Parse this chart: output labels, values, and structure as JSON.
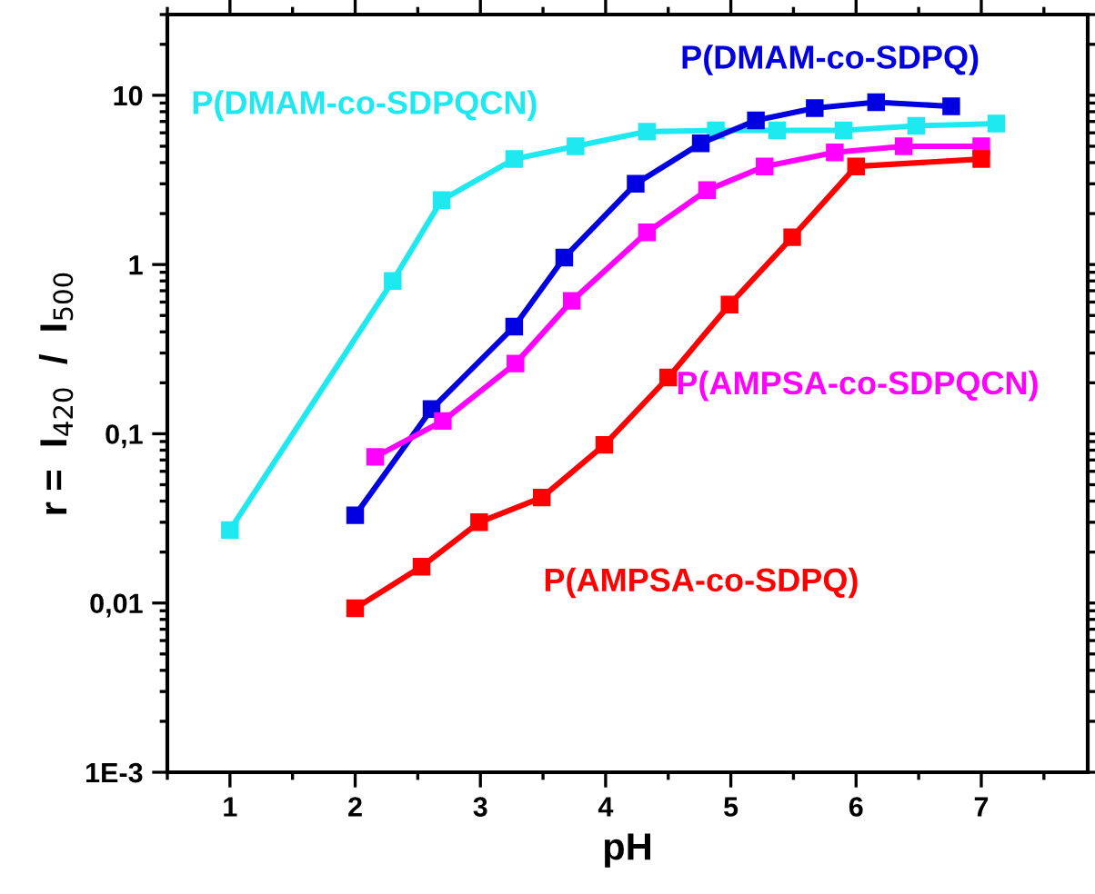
{
  "chart_data": {
    "type": "line",
    "xlabel": "pH",
    "ylabel": "r =  I$_{420}$  /  I$_{500}$",
    "log": "y",
    "xlim": [
      0.5,
      7.85
    ],
    "xticks": [
      1,
      2,
      3,
      4,
      5,
      6,
      7
    ],
    "ylim": [
      0.001,
      30
    ],
    "yticks": [
      {
        "value": 0.001,
        "label": "1E-3"
      },
      {
        "value": 0.01,
        "label": "0,01"
      },
      {
        "value": 0.1,
        "label": "0,1"
      },
      1,
      10
    ],
    "marker": "square",
    "grid": false,
    "legend": false,
    "series": [
      {
        "name": "P(DMAM-co-SDPQCN)",
        "color": "#1ee8f0",
        "x": [
          1,
          2.3,
          2.69,
          3.27,
          3.76,
          4.33,
          4.88,
          5.37,
          5.9,
          6.48,
          7.12
        ],
        "values": [
          0.027,
          0.8,
          2.4,
          4.2,
          5.0,
          6.1,
          6.2,
          6.2,
          6.2,
          6.6,
          6.8
        ]
      },
      {
        "name": "P(DMAM-co-SDPQ)",
        "color": "#0000e0",
        "x": [
          2,
          2.61,
          3.27,
          3.67,
          4.24,
          4.76,
          5.2,
          5.67,
          6.16,
          6.76
        ],
        "values": [
          0.033,
          0.14,
          0.43,
          1.1,
          3.0,
          5.2,
          7.1,
          8.4,
          9.1,
          8.6
        ]
      },
      {
        "name": "P(AMPSA-co-SDPQCN)",
        "color": "#ff00ff",
        "x": [
          2.16,
          2.7,
          3.28,
          3.73,
          4.33,
          4.81,
          5.27,
          5.83,
          6.38,
          7.0
        ],
        "values": [
          0.073,
          0.119,
          0.26,
          0.61,
          1.55,
          2.75,
          3.8,
          4.6,
          5.0,
          5.0
        ]
      },
      {
        "name": "P(AMPSA-co-SDPQ)",
        "color": "#ff0000",
        "x": [
          2,
          2.53,
          2.99,
          3.49,
          3.99,
          4.5,
          4.99,
          5.49,
          6.0,
          7.0
        ],
        "values": [
          0.0093,
          0.0164,
          0.03,
          0.042,
          0.086,
          0.215,
          0.58,
          1.45,
          3.8,
          4.2
        ]
      }
    ]
  }
}
